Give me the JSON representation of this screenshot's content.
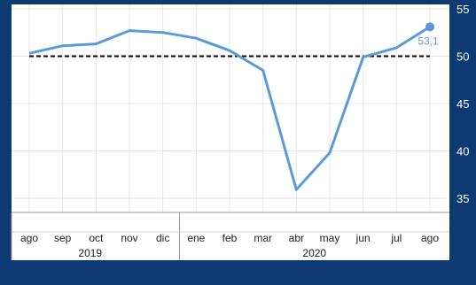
{
  "colors": {
    "background": "#0d3a73",
    "plot_background": "#ffffff",
    "line": "#5b9bd5",
    "reference_line": "#000000",
    "grid": "#e6e6e6",
    "axis_text_right": "#ffffff",
    "axis_text_bottom": "#222222"
  },
  "chart_data": {
    "type": "line",
    "title": "",
    "xlabel": "",
    "ylabel": "",
    "categories": [
      "ago",
      "sep",
      "oct",
      "nov",
      "dic",
      "ene",
      "feb",
      "mar",
      "abr",
      "may",
      "jun",
      "jul",
      "ago"
    ],
    "year_groups": [
      {
        "label": "2019",
        "count": 5
      },
      {
        "label": "2020",
        "count": 8
      }
    ],
    "series": [
      {
        "values": [
          50.3,
          51.1,
          51.3,
          52.7,
          52.5,
          51.9,
          50.6,
          48.5,
          35.9,
          39.8,
          49.9,
          50.9,
          53.1
        ]
      }
    ],
    "last_value_label": "53,1",
    "reference_line_value": 50,
    "ylim": [
      33.5,
      55
    ],
    "yticks": [
      35,
      40,
      45,
      50,
      55
    ],
    "y_axis_side": "right",
    "grid": true
  }
}
